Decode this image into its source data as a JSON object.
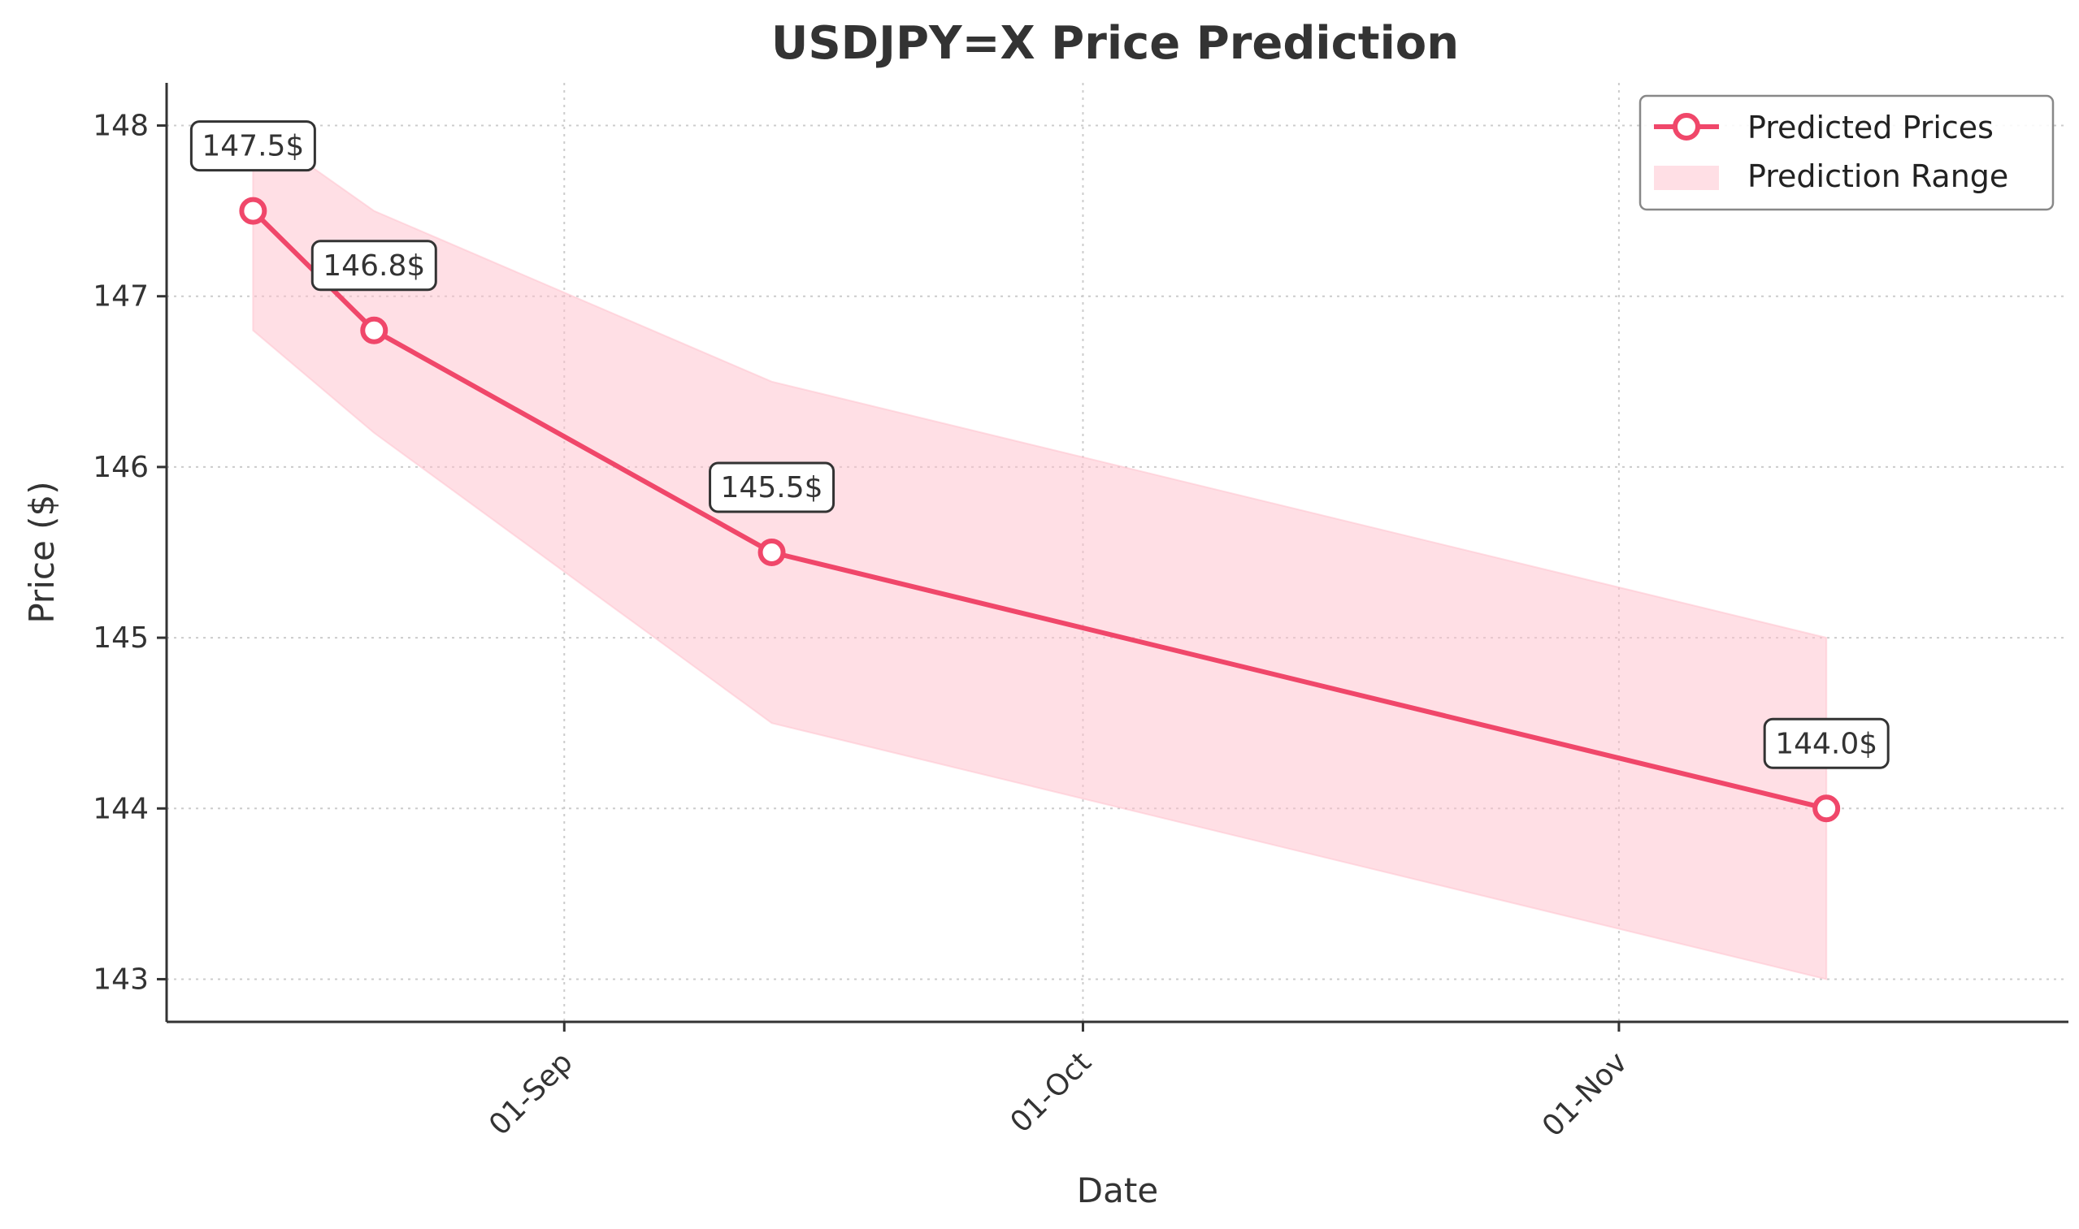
{
  "chart_data": {
    "type": "line",
    "title": "USDJPY=X Price Prediction",
    "xlabel": "Date",
    "ylabel": "Price ($)",
    "x_ticks": [
      {
        "label": "01-Sep",
        "date": "2023-09-01"
      },
      {
        "label": "01-Oct",
        "date": "2023-10-01"
      },
      {
        "label": "01-Nov",
        "date": "2023-11-01"
      }
    ],
    "y_ticks": [
      143,
      144,
      145,
      146,
      147,
      148
    ],
    "ylim": [
      142.75,
      148.25
    ],
    "xlim": [
      "2023-08-09",
      "2023-11-27"
    ],
    "grid": true,
    "legend_position": "top-right",
    "series": [
      {
        "name": "Predicted Prices",
        "type": "line",
        "color": "#f0476a",
        "points": [
          {
            "x": "2023-08-14",
            "y": 147.5,
            "label": "147.5$"
          },
          {
            "x": "2023-08-21",
            "y": 146.8,
            "label": "146.8$"
          },
          {
            "x": "2023-09-13",
            "y": 145.5,
            "label": "145.5$"
          },
          {
            "x": "2023-11-13",
            "y": 144.0,
            "label": "144.0$"
          }
        ]
      },
      {
        "name": "Prediction Range",
        "type": "band",
        "color": "#ffc0cb",
        "points": [
          {
            "x": "2023-08-14",
            "low": 146.8,
            "high": 148.0
          },
          {
            "x": "2023-08-21",
            "low": 146.2,
            "high": 147.5
          },
          {
            "x": "2023-09-13",
            "low": 144.5,
            "high": 146.5
          },
          {
            "x": "2023-11-13",
            "low": 143.0,
            "high": 145.0
          }
        ]
      }
    ]
  }
}
